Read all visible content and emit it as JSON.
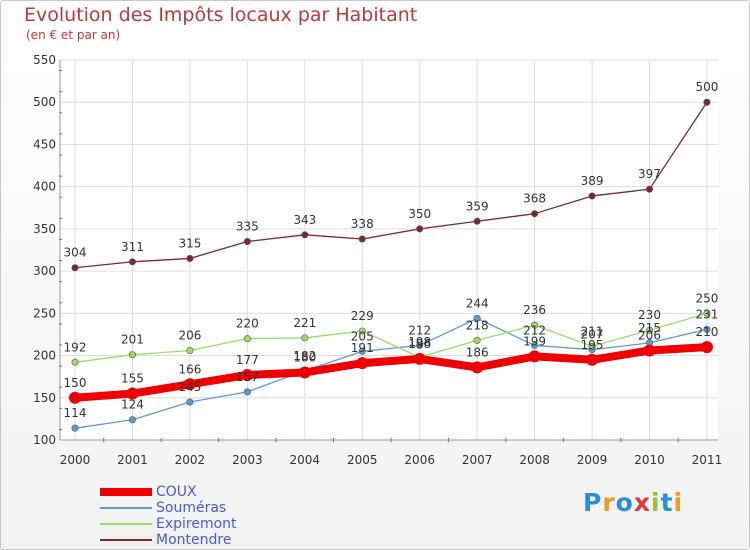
{
  "title": "Evolution des Impôts locaux par Habitant",
  "subtitle": "(en € et par an)",
  "logo_text": "Proxiti",
  "chart_data": {
    "type": "line",
    "title": "Evolution des Impôts locaux par Habitant",
    "subtitle": "(en € et par an)",
    "xlabel": "",
    "ylabel": "",
    "categories": [
      "2000",
      "2001",
      "2002",
      "2003",
      "2004",
      "2005",
      "2006",
      "2007",
      "2008",
      "2009",
      "2010",
      "2011"
    ],
    "ylim": [
      100,
      550
    ],
    "yticks": [
      100,
      150,
      200,
      250,
      300,
      350,
      400,
      450,
      500,
      550
    ],
    "grid": true,
    "legend_position": "bottom-left",
    "series": [
      {
        "name": "COUX",
        "color": "#ee0000",
        "values": [
          150,
          155,
          166,
          177,
          180,
          191,
          196,
          186,
          199,
          195,
          206,
          210
        ]
      },
      {
        "name": "Souméras",
        "color": "#5b9bd5",
        "values": [
          114,
          124,
          145,
          157,
          182,
          205,
          212,
          244,
          212,
          207,
          215,
          231
        ]
      },
      {
        "name": "Expiremont",
        "color": "#99dd66",
        "values": [
          192,
          201,
          206,
          220,
          221,
          229,
          198,
          218,
          236,
          211,
          230,
          250
        ]
      },
      {
        "name": "Montendre",
        "color": "#7a2a2a",
        "values": [
          304,
          311,
          315,
          335,
          343,
          338,
          350,
          359,
          368,
          389,
          397,
          500
        ]
      }
    ]
  }
}
